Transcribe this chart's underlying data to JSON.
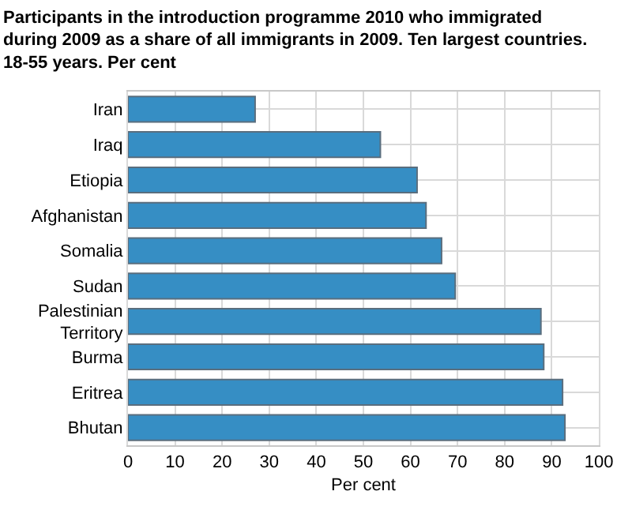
{
  "chart_data": {
    "type": "bar",
    "orientation": "horizontal",
    "title": "Participants in the introduction programme 2010 who immigrated\nduring 2009 as a share of all immigrants in 2009. Ten largest countries.\n18-55 years. Per cent",
    "xlabel": "Per cent",
    "categories": [
      "Iran",
      "Iraq",
      "Etiopia",
      "Afghanistan",
      "Somalia",
      "Sudan",
      "Palestinian Territory",
      "Burma",
      "Eritrea",
      "Bhutan"
    ],
    "values": [
      27,
      53.6,
      61.4,
      63.3,
      66.6,
      69.5,
      87.7,
      88.3,
      92.3,
      92.8
    ],
    "color": "#368ec4",
    "xlim": [
      0,
      100
    ],
    "xticks": [
      0,
      10,
      20,
      30,
      40,
      50,
      60,
      70,
      80,
      90,
      100
    ],
    "grid": true,
    "legend": false
  }
}
